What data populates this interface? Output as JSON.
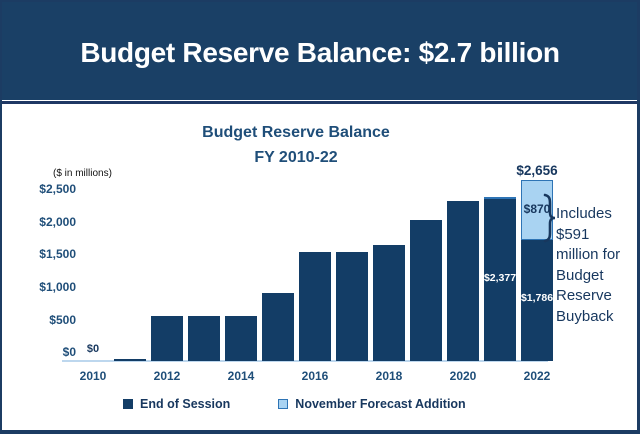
{
  "header": {
    "title": "Budget Reserve Balance: $2.7 billion",
    "bg_color": "#1A4066",
    "text_color": "#FFFFFF"
  },
  "chart": {
    "title_line1": "Budget Reserve Balance",
    "title_line2": "FY 2010-22",
    "units_note": "($ in millions)"
  },
  "chart_data": {
    "type": "bar",
    "stacked": true,
    "title": "Budget Reserve Balance FY 2010-22",
    "units": "$ in millions",
    "categories": [
      2010,
      2011,
      2012,
      2013,
      2014,
      2015,
      2016,
      2017,
      2018,
      2019,
      2020,
      2021,
      2022
    ],
    "series": [
      {
        "name": "End of Session",
        "color": "#133D66",
        "values": [
          0,
          35,
          655,
          655,
          655,
          1000,
          1600,
          1610,
          1700,
          2075,
          2360,
          2377,
          1786
        ]
      },
      {
        "name": "November Forecast Addition",
        "color": "#A9D3F2",
        "border": "#2E74B5",
        "values": [
          0,
          0,
          0,
          0,
          0,
          0,
          0,
          0,
          0,
          0,
          0,
          35,
          870
        ]
      }
    ],
    "y_ticks": [
      0,
      500,
      1000,
      1500,
      2000,
      2500
    ],
    "y_tick_labels": [
      "$0",
      "$500",
      "$1,000",
      "$1,500",
      "$2,000",
      "$2,500"
    ],
    "x_tick_labels": [
      "2010",
      "2012",
      "2014",
      "2016",
      "2018",
      "2020",
      "2022"
    ],
    "ylim": [
      0,
      2656
    ],
    "grid": false,
    "legend_position": "bottom",
    "labels": [
      {
        "category": 2010,
        "text": "$0",
        "placement": "above",
        "color": "#17375E"
      },
      {
        "category": 2021,
        "text": "$2,377",
        "placement": "inside-dark",
        "color": "#FFFFFF"
      },
      {
        "category": 2022,
        "text": "$1,786",
        "placement": "inside-dark",
        "color": "#FFFFFF"
      },
      {
        "category": 2022,
        "text": "$870",
        "placement": "inside-light",
        "color": "#17375E"
      },
      {
        "category": 2022,
        "text": "$2,656",
        "placement": "above-total",
        "color": "#17375E"
      }
    ],
    "annotation": "Includes $591 million for Budget Reserve Buyback"
  },
  "colors": {
    "accent_navy": "#17375E",
    "title_blue": "#1F4E79",
    "axis_line_blue": "#BDD7EE"
  }
}
